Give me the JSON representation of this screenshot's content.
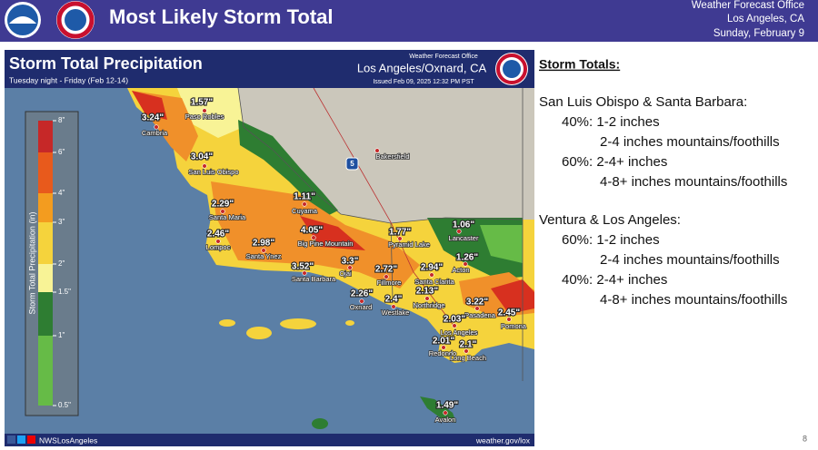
{
  "header": {
    "title": "Most Likely Storm Total",
    "office": [
      "Weather Forecast Office",
      "Los Angeles, CA",
      "Sunday, February 9"
    ]
  },
  "map": {
    "title": "Storm Total Precipitation",
    "subtitle": "Tuesday night - Friday (Feb 12-14)",
    "office": "Weather Forecast Office",
    "location": "Los Angeles/Oxnard, CA",
    "issued": "Issued Feb 09, 2025 12:32 PM PST",
    "legend": {
      "title": "Storm Total Precipitation (in)",
      "labels": [
        "8\"",
        "6\"",
        "4\"",
        "3\"",
        "2\"",
        "1.5\"",
        "1\"",
        "0.5\""
      ]
    },
    "highway": "5",
    "cities": [
      {
        "name": "Paso Robles",
        "amount": "1.57\""
      },
      {
        "name": "Cambria",
        "amount": "3.24\""
      },
      {
        "name": "San Luis Obispo",
        "amount": "3.04\""
      },
      {
        "name": "Santa Maria",
        "amount": "2.29\""
      },
      {
        "name": "Lompoc",
        "amount": "2.46\""
      },
      {
        "name": "Santa Ynez",
        "amount": "2.98\""
      },
      {
        "name": "Cuyama",
        "amount": "1.11\""
      },
      {
        "name": "Big Pine Mountain",
        "amount": "4.05\""
      },
      {
        "name": "Santa Barbara",
        "amount": "3.52\""
      },
      {
        "name": "Ojai",
        "amount": "3.3\""
      },
      {
        "name": "Fillmore",
        "amount": "2.72\""
      },
      {
        "name": "Oxnard",
        "amount": "2.26\""
      },
      {
        "name": "Westlake",
        "amount": "2.4\""
      },
      {
        "name": "Pyramid Lake",
        "amount": "1.77\""
      },
      {
        "name": "Lancaster",
        "amount": "1.06\""
      },
      {
        "name": "Acton",
        "amount": "1.26\""
      },
      {
        "name": "Santa Clarita",
        "amount": "2.94\""
      },
      {
        "name": "Northridge",
        "amount": "2.13\""
      },
      {
        "name": "Pasadena",
        "amount": "3.22\""
      },
      {
        "name": "Pomona",
        "amount": "2.45\""
      },
      {
        "name": "Los Angeles",
        "amount": "2.03\""
      },
      {
        "name": "Redondo",
        "amount": "2.01\""
      },
      {
        "name": "Long Beach",
        "amount": "2.1\""
      },
      {
        "name": "Avalon",
        "amount": "1.49\""
      },
      {
        "name": "Bakersfield"
      }
    ],
    "footer": {
      "handle": "NWSLosAngeles",
      "url": "weather.gov/lox"
    }
  },
  "summary": {
    "title": "Storm Totals:",
    "regions": [
      {
        "name": "San Luis Obispo & Santa Barbara:",
        "lines": [
          "40%: 1-2 inches",
          "2-4 inches mountains/foothills",
          "60%: 2-4+ inches",
          "4-8+ inches mountains/foothills"
        ]
      },
      {
        "name": "Ventura & Los Angeles:",
        "lines": [
          "60%: 1-2 inches",
          "2-4 inches mountains/foothills",
          "40%: 2-4+ inches",
          "4-8+ inches mountains/foothills"
        ]
      }
    ]
  },
  "page_number": "8"
}
